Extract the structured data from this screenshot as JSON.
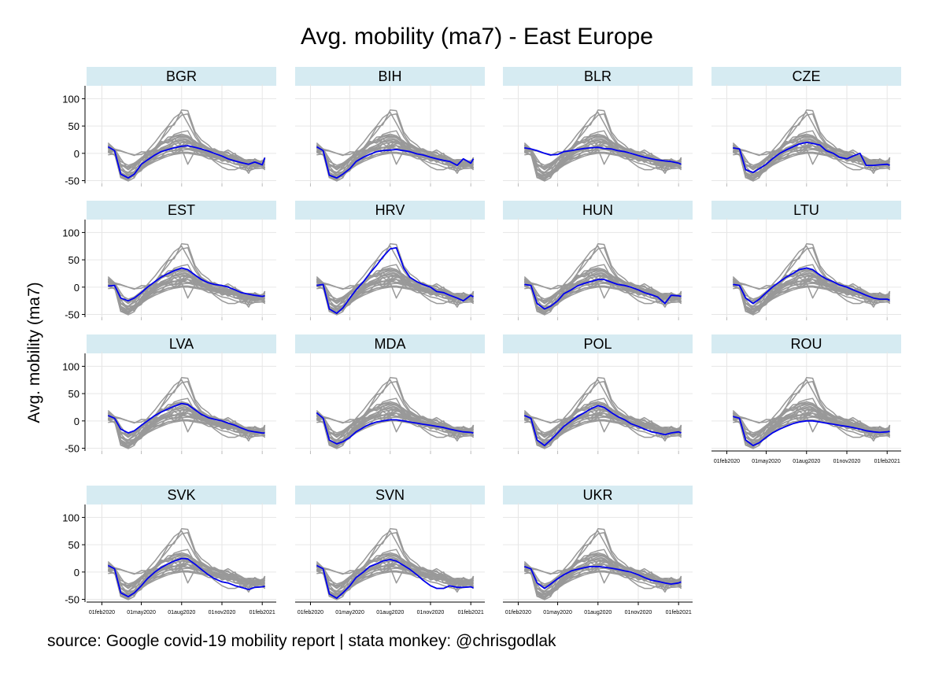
{
  "chart_data": {
    "type": "line",
    "title": "Avg. mobility (ma7) - East Europe",
    "ylabel": "Avg. mobility (ma7)",
    "xlabel": "",
    "ylim": [
      -55,
      115
    ],
    "yticks": [
      100,
      50,
      0,
      -50
    ],
    "x_range": [
      "2020-01-15",
      "2021-02-15"
    ],
    "xticks": [
      "01feb2020",
      "01may2020",
      "01aug2020",
      "01nov2020",
      "01feb2021"
    ],
    "grid": true,
    "highlight_color": "#0000ee",
    "background_color": "#999999",
    "header_color": "#d6ebf2",
    "x_dates": [
      "2020-02-15",
      "2020-03-01",
      "2020-03-15",
      "2020-04-01",
      "2020-04-15",
      "2020-05-01",
      "2020-05-15",
      "2020-06-01",
      "2020-06-15",
      "2020-07-01",
      "2020-07-15",
      "2020-08-01",
      "2020-08-15",
      "2020-09-01",
      "2020-09-15",
      "2020-10-01",
      "2020-10-15",
      "2020-11-01",
      "2020-11-15",
      "2020-12-01",
      "2020-12-15",
      "2021-01-01",
      "2021-01-15",
      "2021-02-01",
      "2021-02-07"
    ],
    "panels": [
      {
        "country": "BGR",
        "values": [
          12,
          5,
          -38,
          -45,
          -38,
          -20,
          -12,
          -3,
          3,
          7,
          10,
          13,
          14,
          11,
          8,
          4,
          0,
          -5,
          -10,
          -14,
          -17,
          -20,
          -16,
          -21,
          -8
        ]
      },
      {
        "country": "BIH",
        "values": [
          12,
          5,
          -40,
          -45,
          -38,
          -28,
          -15,
          -7,
          -2,
          3,
          5,
          6,
          7,
          5,
          3,
          -1,
          -3,
          -7,
          -10,
          -13,
          -15,
          -22,
          -10,
          -18,
          -10
        ]
      },
      {
        "country": "BLR",
        "values": [
          10,
          8,
          5,
          0,
          -3,
          -2,
          3,
          5,
          7,
          9,
          10,
          11,
          9,
          8,
          5,
          3,
          0,
          -4,
          -7,
          -10,
          -12,
          -14,
          -15,
          -18,
          -20
        ]
      },
      {
        "country": "CZE",
        "values": [
          10,
          8,
          -30,
          -35,
          -28,
          -20,
          -10,
          0,
          6,
          12,
          17,
          20,
          18,
          15,
          5,
          0,
          -7,
          -10,
          -5,
          0,
          -22,
          -22,
          -21,
          -20,
          -22
        ]
      },
      {
        "country": "EST",
        "values": [
          2,
          3,
          -20,
          -25,
          -20,
          -10,
          0,
          10,
          18,
          25,
          30,
          35,
          32,
          22,
          14,
          8,
          5,
          3,
          0,
          -5,
          -10,
          -13,
          -15,
          -17,
          -16
        ]
      },
      {
        "country": "HRV",
        "values": [
          3,
          5,
          -40,
          -48,
          -38,
          -20,
          -5,
          10,
          25,
          40,
          55,
          70,
          72,
          35,
          18,
          10,
          5,
          0,
          -8,
          -10,
          -15,
          -20,
          -25,
          -15,
          -18
        ]
      },
      {
        "country": "HUN",
        "values": [
          5,
          3,
          -30,
          -40,
          -35,
          -25,
          -12,
          -5,
          2,
          7,
          10,
          14,
          14,
          9,
          5,
          3,
          0,
          -5,
          -10,
          -14,
          -18,
          -30,
          -15,
          -16,
          -17
        ]
      },
      {
        "country": "LTU",
        "values": [
          5,
          3,
          -20,
          -30,
          -22,
          -10,
          0,
          10,
          18,
          25,
          32,
          35,
          32,
          22,
          15,
          10,
          4,
          0,
          -5,
          -10,
          -15,
          -20,
          -22,
          -22,
          -24
        ]
      },
      {
        "country": "LVA",
        "values": [
          10,
          5,
          -15,
          -22,
          -18,
          -8,
          0,
          10,
          16,
          22,
          27,
          32,
          30,
          20,
          12,
          6,
          3,
          0,
          -4,
          -8,
          -13,
          -18,
          -20,
          -22,
          -22
        ]
      },
      {
        "country": "MDA",
        "values": [
          15,
          5,
          -35,
          -42,
          -38,
          -30,
          -20,
          -12,
          -6,
          -2,
          0,
          2,
          2,
          0,
          -2,
          -4,
          -6,
          -8,
          -10,
          -12,
          -15,
          -18,
          -20,
          -21,
          -22
        ]
      },
      {
        "country": "POL",
        "values": [
          10,
          5,
          -35,
          -45,
          -35,
          -22,
          -10,
          0,
          8,
          15,
          22,
          28,
          25,
          15,
          8,
          2,
          -5,
          -10,
          -15,
          -20,
          -22,
          -25,
          -22,
          -20,
          -22
        ]
      },
      {
        "country": "ROU",
        "values": [
          8,
          5,
          -35,
          -45,
          -40,
          -30,
          -22,
          -15,
          -10,
          -5,
          -2,
          0,
          0,
          -2,
          -4,
          -6,
          -8,
          -10,
          -12,
          -15,
          -18,
          -20,
          -21,
          -20,
          -19
        ]
      },
      {
        "country": "SVK",
        "values": [
          12,
          6,
          -38,
          -45,
          -38,
          -25,
          -12,
          0,
          8,
          15,
          20,
          25,
          24,
          14,
          5,
          -5,
          -12,
          -18,
          -20,
          -25,
          -28,
          -32,
          -28,
          -27,
          -26
        ]
      },
      {
        "country": "SVN",
        "values": [
          12,
          6,
          -40,
          -48,
          -38,
          -25,
          -10,
          0,
          10,
          15,
          20,
          23,
          20,
          12,
          5,
          -5,
          -15,
          -25,
          -30,
          -30,
          -25,
          -28,
          -28,
          -27,
          -29
        ]
      },
      {
        "country": "UKR",
        "values": [
          10,
          6,
          -20,
          -30,
          -22,
          -12,
          -5,
          2,
          5,
          8,
          10,
          10,
          9,
          7,
          5,
          2,
          0,
          -5,
          -10,
          -15,
          -17,
          -20,
          -22,
          -20,
          -18
        ]
      }
    ]
  },
  "footer": {
    "source": "source: Google covid-19 mobility report | stata monkey: @chrisgodlak"
  }
}
